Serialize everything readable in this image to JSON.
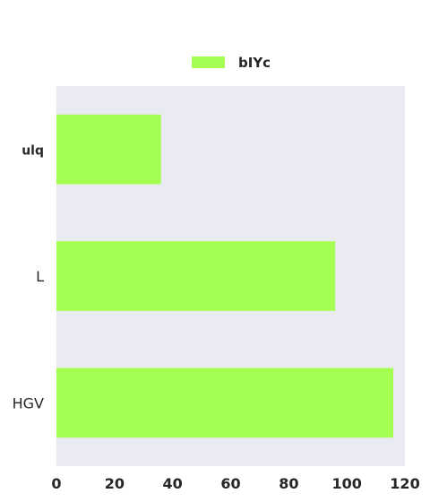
{
  "chart_data": {
    "type": "bar",
    "orientation": "horizontal",
    "categories": [
      "ulq",
      "L",
      "HGV"
    ],
    "series": [
      {
        "name": "bIYc",
        "values": [
          36,
          96,
          116
        ],
        "color": "#a5ff52"
      }
    ],
    "xlim": [
      0,
      120
    ],
    "xticks": [
      "0",
      "20",
      "40",
      "60",
      "80",
      "100",
      "120"
    ],
    "grid": false,
    "plot_background": "#eaeaf2",
    "legend_position": "top-center",
    "category_label_bold": [
      true,
      false,
      false
    ]
  }
}
